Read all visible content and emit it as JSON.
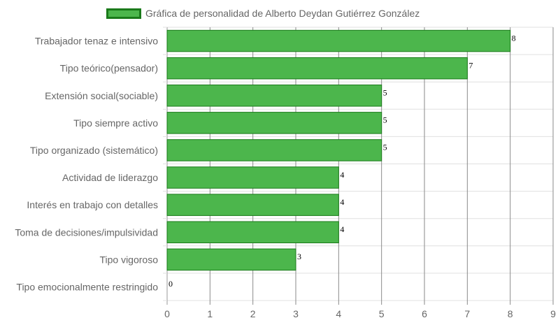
{
  "chart_data": {
    "type": "bar",
    "orientation": "horizontal",
    "title": "",
    "legend": {
      "label": "Gráfica de personalidad de Alberto Deydan Gutiérrez González",
      "placement": "top"
    },
    "categories": [
      "Trabajador tenaz e intensivo",
      "Tipo teórico(pensador)",
      "Extensión social(sociable)",
      "Tipo siempre activo",
      "Tipo organizado (sistemático)",
      "Actividad de liderazgo",
      "Interés en trabajo con detalles",
      "Toma de decisiones/impulsividad",
      "Tipo vigoroso",
      "Tipo emocionalmente restringido"
    ],
    "series": [
      {
        "name": "Gráfica de personalidad de Alberto Deydan Gutiérrez González",
        "values": [
          8,
          7,
          5,
          5,
          5,
          4,
          4,
          4,
          3,
          0
        ]
      }
    ],
    "xlim": [
      0,
      9
    ],
    "x_ticks": [
      "0",
      "1",
      "2",
      "3",
      "4",
      "5",
      "6",
      "7",
      "8",
      "9"
    ],
    "grid": true,
    "data_labels": true,
    "colors": {
      "bar_fill": "#4cb64c",
      "bar_border": "#1a7a1a",
      "grid": "#e0e0e0",
      "grid_vertical": "#8a8a8a",
      "label_text": "#666666",
      "value_text": "#000000"
    }
  }
}
